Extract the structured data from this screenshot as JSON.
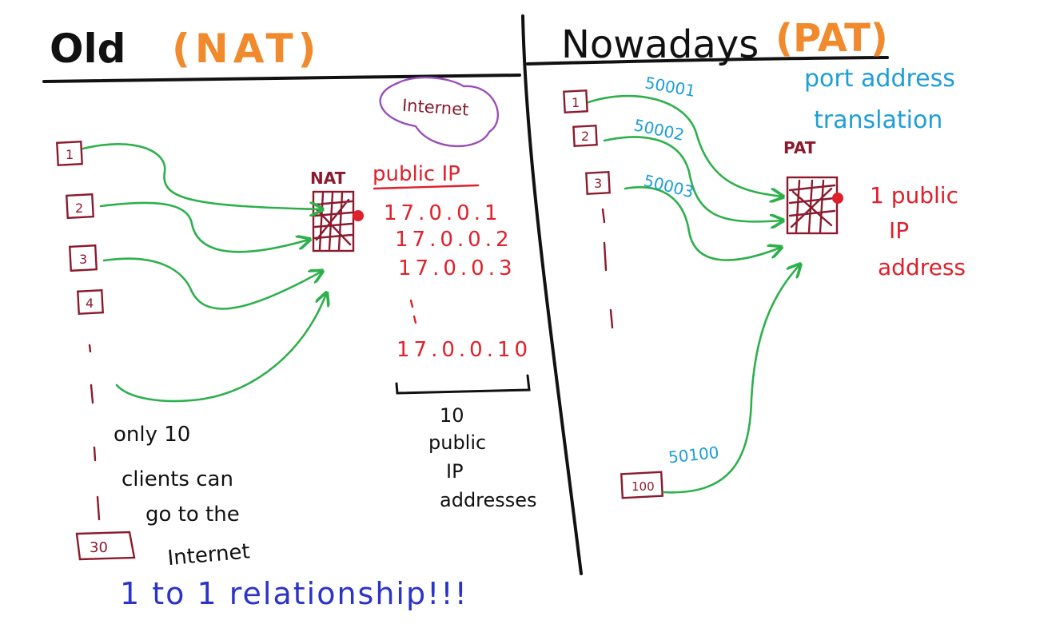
{
  "colors": {
    "ink": "#111111",
    "orange": "#f08a2c",
    "red": "#e0202a",
    "maroon": "#8b1a2e",
    "green": "#2db04b",
    "blue": "#1e9ed8",
    "purple": "#9a4fb8",
    "navy": "#2a34c8"
  },
  "left": {
    "heading": "Old",
    "heading_tag": "(NAT)",
    "cloud_label": "Internet",
    "device_label": "NAT",
    "device_icon": "router-grid-icon",
    "public_ip_heading": "public IP",
    "ip_list": [
      "17.0.0.1",
      "17.0.0.2",
      "17.0.0.3",
      "17.0.0.10"
    ],
    "client_labels": [
      "1",
      "2",
      "3",
      "4",
      "30"
    ],
    "bracket_note": [
      "10",
      "public",
      "IP",
      "addresses"
    ],
    "note_lines": [
      "only 10",
      "clients can",
      "go to the",
      "Internet"
    ],
    "footer": "1 to 1 relationship!!!"
  },
  "right": {
    "heading": "Nowadays",
    "heading_tag": "(PAT)",
    "subtitle_lines": [
      "port address",
      "translation"
    ],
    "device_label": "PAT",
    "device_icon": "router-grid-icon",
    "note_lines": [
      "1 public",
      "IP",
      "address"
    ],
    "client_labels": [
      "1",
      "2",
      "3",
      "100"
    ],
    "port_labels": [
      "50001",
      "50002",
      "50003",
      "50100"
    ]
  }
}
